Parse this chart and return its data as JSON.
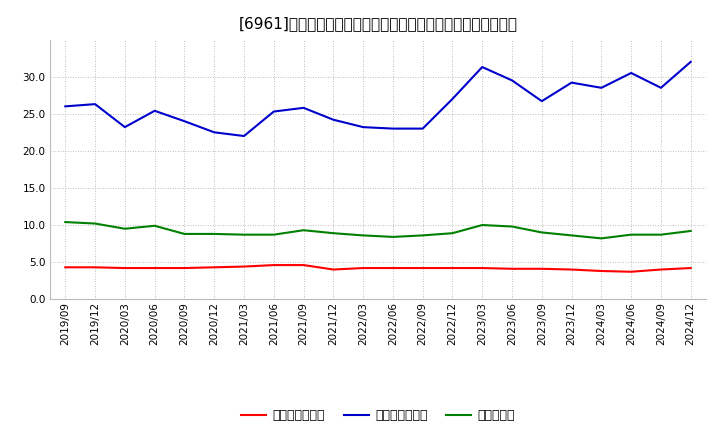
{
  "title": "[6961]　売上債権回転率、買入債務回転率、在庫回転率の推移",
  "x_labels": [
    "2019/09",
    "2019/12",
    "2020/03",
    "2020/06",
    "2020/09",
    "2020/12",
    "2021/03",
    "2021/06",
    "2021/09",
    "2021/12",
    "2022/03",
    "2022/06",
    "2022/09",
    "2022/12",
    "2023/03",
    "2023/06",
    "2023/09",
    "2023/12",
    "2024/03",
    "2024/06",
    "2024/09",
    "2024/12"
  ],
  "receivables_turnover": [
    4.3,
    4.3,
    4.2,
    4.2,
    4.2,
    4.3,
    4.4,
    4.6,
    4.6,
    4.0,
    4.2,
    4.2,
    4.2,
    4.2,
    4.2,
    4.1,
    4.1,
    4.0,
    3.8,
    3.7,
    4.0,
    4.2
  ],
  "payables_turnover": [
    26.0,
    26.3,
    23.2,
    25.4,
    24.0,
    22.5,
    22.0,
    25.3,
    25.8,
    24.2,
    23.2,
    23.0,
    23.0,
    27.0,
    31.3,
    29.5,
    26.7,
    29.2,
    28.5,
    30.5,
    28.5,
    32.0
  ],
  "inventory_turnover": [
    10.4,
    10.2,
    9.5,
    9.9,
    8.8,
    8.8,
    8.7,
    8.7,
    9.3,
    8.9,
    8.6,
    8.4,
    8.6,
    8.9,
    10.0,
    9.8,
    9.0,
    8.6,
    8.2,
    8.7,
    8.7,
    9.2
  ],
  "line_colors": {
    "receivables": "#ff0000",
    "payables": "#0000cc",
    "inventory": "#008000"
  },
  "legend_labels": {
    "receivables": "売上債権回転率",
    "payables": "買入債務回転率",
    "inventory": "在庫回転率"
  },
  "ylim": [
    0,
    35
  ],
  "yticks": [
    0.0,
    5.0,
    10.0,
    15.0,
    20.0,
    25.0,
    30.0
  ],
  "background_color": "#ffffff",
  "grid_color": "#aaaaaa",
  "title_fontsize": 11,
  "tick_fontsize": 7.5,
  "legend_fontsize": 9
}
